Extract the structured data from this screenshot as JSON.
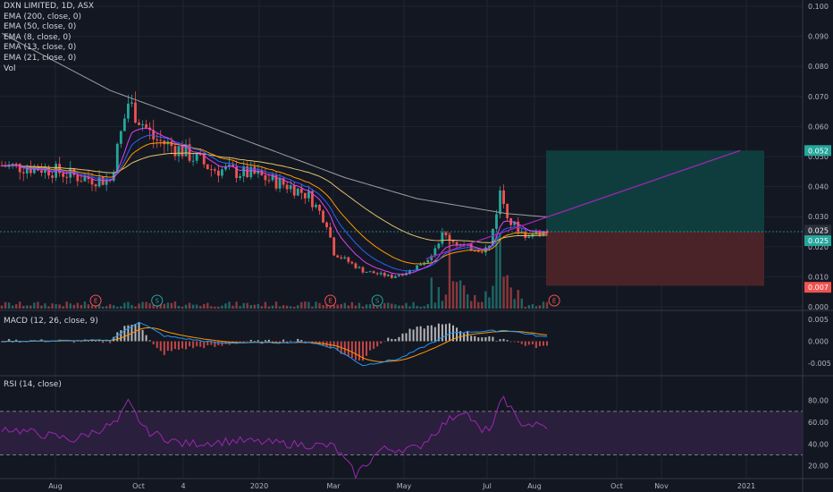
{
  "legend": {
    "title": "DXN LIMITED, 1D, ASX",
    "indicators": [
      "EMA (200, close, 0)",
      "EMA (50, close, 0)",
      "EMA (8, close, 0)",
      "EMA (13, close, 0)",
      "EMA (21, close, 0)",
      "Vol"
    ],
    "macd": "MACD (12, 26, close, 9)",
    "rsi": "RSI (14, close)"
  },
  "colors": {
    "background": "#131722",
    "grid": "#1f2430",
    "up": "#26a69a",
    "down": "#ef5350",
    "ema200": "#9e9e9e",
    "ema50": "#e0c36a",
    "ema8": "#e040fb",
    "ema13": "#2962ff",
    "ema21": "#ff9800",
    "trendline": "#9c27b0",
    "target_zone": "#0f3d3e",
    "stop_zone": "#4a2329",
    "macd_line": "#2196f3",
    "signal_line": "#ff9800",
    "rsi_line": "#9c27b0",
    "rsi_band": "#2a1f3d"
  },
  "chart_data": [
    {
      "type": "candlestick",
      "pane": "price",
      "ylim": [
        0,
        0.1
      ],
      "price_ticks": [
        "0.100",
        "0.090",
        "0.080",
        "0.070",
        "0.060",
        "0.050",
        "0.040",
        "0.030",
        "0.020",
        "0.010",
        "0.000"
      ],
      "time_labels": [
        "Aug",
        "Oct",
        "4",
        "2020",
        "Mar",
        "May",
        "Jul",
        "Aug",
        "Oct",
        "Nov",
        "2021"
      ],
      "price_path": [
        [
          0,
          0.047
        ],
        [
          12,
          0.046
        ],
        [
          22,
          0.043
        ],
        [
          30,
          0.042
        ],
        [
          35,
          0.068
        ],
        [
          42,
          0.056
        ],
        [
          50,
          0.052
        ],
        [
          58,
          0.046
        ],
        [
          70,
          0.044
        ],
        [
          80,
          0.04
        ],
        [
          85,
          0.037
        ],
        [
          90,
          0.028
        ],
        [
          92,
          0.018
        ],
        [
          100,
          0.012
        ],
        [
          108,
          0.01
        ],
        [
          113,
          0.012
        ],
        [
          118,
          0.016
        ],
        [
          122,
          0.024
        ],
        [
          128,
          0.02
        ],
        [
          133,
          0.019
        ],
        [
          135,
          0.02
        ],
        [
          138,
          0.038
        ],
        [
          141,
          0.028
        ],
        [
          145,
          0.024
        ],
        [
          150,
          0.025
        ]
      ],
      "ema200_path": [
        [
          0,
          0.091
        ],
        [
          30,
          0.072
        ],
        [
          55,
          0.061
        ],
        [
          75,
          0.052
        ],
        [
          95,
          0.043
        ],
        [
          115,
          0.036
        ],
        [
          140,
          0.031
        ],
        [
          150,
          0.03
        ]
      ],
      "horizontal_levels": {
        "entry": 0.025,
        "target": 0.052,
        "stop": 0.007
      },
      "price_tags": [
        {
          "label": "0.052",
          "value": 0.052,
          "color": "#26a69a"
        },
        {
          "label": "0.025",
          "value": 0.0255,
          "color": "#2a2e39"
        },
        {
          "label": "0.025",
          "value": 0.022,
          "color": "#26a69a"
        },
        {
          "label": "0.007",
          "value": 0.0065,
          "color": "#ef5350"
        }
      ],
      "events": [
        {
          "label": "E",
          "day": 26,
          "kind": "earnings"
        },
        {
          "label": "S",
          "day": 43,
          "kind": "split"
        },
        {
          "label": "E",
          "day": 91,
          "kind": "earnings"
        },
        {
          "label": "S",
          "day": 104,
          "kind": "split"
        },
        {
          "label": "E",
          "day": 153,
          "kind": "earnings"
        }
      ],
      "trendline": {
        "from": {
          "day": 118,
          "value": 0.016
        },
        "to": {
          "day": 205,
          "value": 0.052
        }
      }
    },
    {
      "type": "macd",
      "pane": "macd",
      "ylim": [
        -0.0065,
        0.0065
      ],
      "ticks": [
        "0.005",
        "0.000",
        "-0.005"
      ],
      "macd_path": [
        [
          0,
          0.0
        ],
        [
          30,
          0.0002
        ],
        [
          38,
          0.0045
        ],
        [
          45,
          0.0012
        ],
        [
          60,
          -0.0004
        ],
        [
          85,
          -0.0002
        ],
        [
          92,
          -0.0015
        ],
        [
          100,
          -0.0055
        ],
        [
          110,
          -0.004
        ],
        [
          125,
          0.002
        ],
        [
          140,
          0.0025
        ],
        [
          150,
          0.001
        ]
      ]
    },
    {
      "type": "rsi",
      "pane": "rsi",
      "ylim": [
        10,
        90
      ],
      "ticks": [
        "80.00",
        "60.00",
        "40.00",
        "20.00"
      ],
      "band": [
        30,
        70
      ],
      "rsi_path": [
        [
          0,
          55
        ],
        [
          20,
          44
        ],
        [
          32,
          60
        ],
        [
          35,
          78
        ],
        [
          40,
          52
        ],
        [
          50,
          40
        ],
        [
          65,
          43
        ],
        [
          80,
          40
        ],
        [
          92,
          38
        ],
        [
          98,
          12
        ],
        [
          105,
          35
        ],
        [
          115,
          36
        ],
        [
          123,
          60
        ],
        [
          128,
          72
        ],
        [
          133,
          50
        ],
        [
          136,
          58
        ],
        [
          139,
          84
        ],
        [
          143,
          60
        ],
        [
          150,
          56
        ]
      ]
    }
  ]
}
